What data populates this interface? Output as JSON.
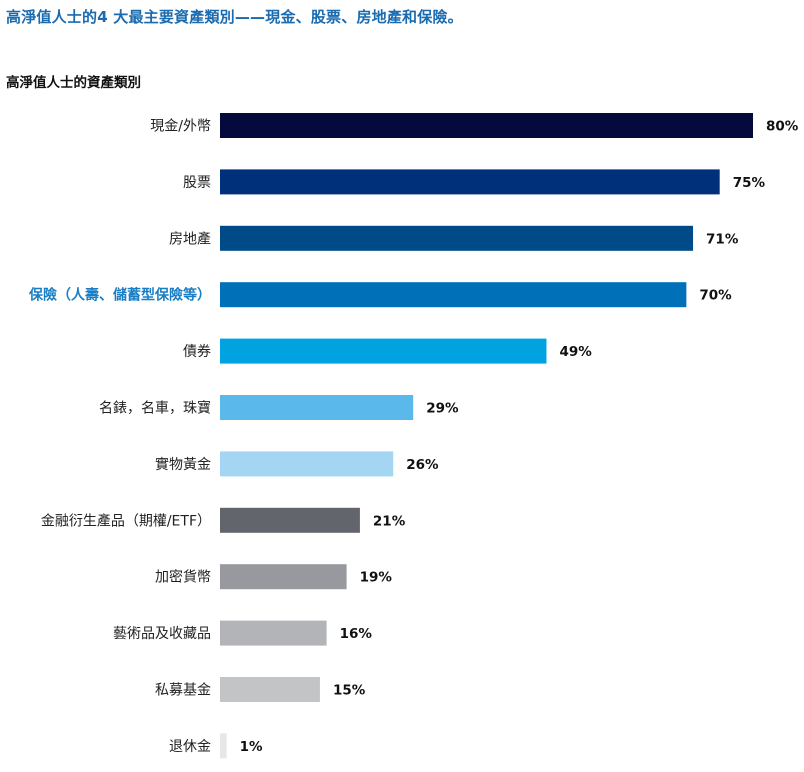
{
  "headline": "高淨值人士的4 大最主要資產類別——現金、股票、房地產和保險。",
  "chart_data": {
    "type": "bar",
    "orientation": "horizontal",
    "title": "高淨值人士的資產類別",
    "categories": [
      "現金/外幣",
      "股票",
      "房地產",
      "保險（人壽、儲蓄型保險等）",
      "債券",
      "名錶，名車，珠寶",
      "實物黃金",
      "金融衍生產品（期權/ETF）",
      "加密貨幣",
      "藝術品及收藏品",
      "私募基金",
      "退休金"
    ],
    "values": [
      80,
      75,
      71,
      70,
      49,
      29,
      26,
      21,
      19,
      16,
      15,
      1
    ],
    "value_labels": [
      "80%",
      "75%",
      "71%",
      "70%",
      "49%",
      "29%",
      "26%",
      "21%",
      "19%",
      "16%",
      "15%",
      "1%"
    ],
    "colors": [
      "#050a3c",
      "#00307a",
      "#004a87",
      "#0071b8",
      "#00a3e0",
      "#5ab8ea",
      "#a4d6f3",
      "#63656d",
      "#97999e",
      "#b2b4b7",
      "#c2c4c6",
      "#e6e7e8"
    ],
    "highlight_index": 3,
    "xlim": [
      0,
      80
    ],
    "grid": false,
    "legend": "none"
  }
}
